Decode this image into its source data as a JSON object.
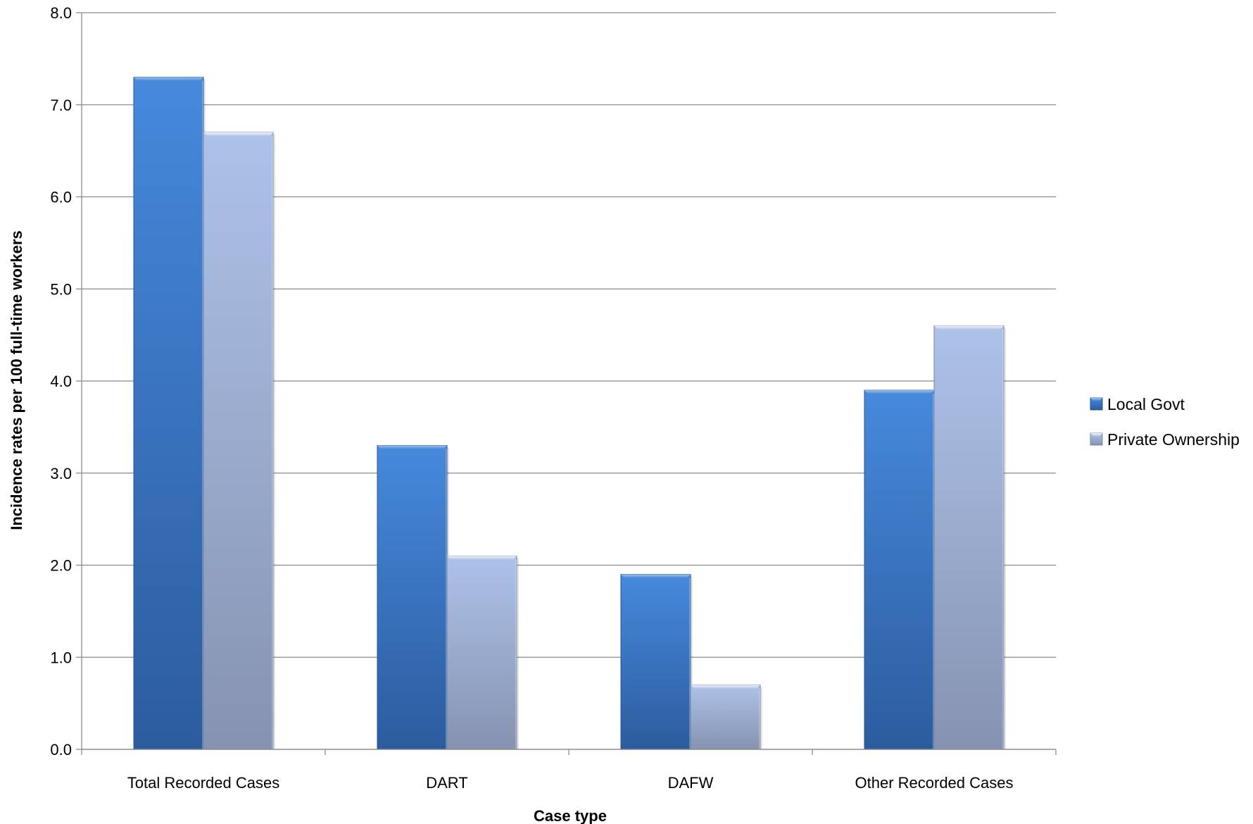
{
  "chart_data": {
    "type": "bar",
    "title": "",
    "xlabel": "Case type",
    "ylabel": "Incidence rates per 100 full-time workers",
    "categories": [
      "Total Recorded Cases",
      "DART",
      "DAFW",
      "Other Recorded Cases"
    ],
    "series": [
      {
        "name": "Local Govt",
        "values": [
          7.3,
          3.3,
          1.9,
          3.9
        ],
        "color": "#3a78c9"
      },
      {
        "name": "Private Ownership",
        "values": [
          6.7,
          2.1,
          0.7,
          4.6
        ],
        "color": "#a2b6dd"
      }
    ],
    "ylim": [
      0,
      8
    ],
    "yticks": [
      "0.0",
      "1.0",
      "2.0",
      "3.0",
      "4.0",
      "5.0",
      "6.0",
      "7.0",
      "8.0"
    ],
    "grid": true,
    "legend": "right"
  }
}
